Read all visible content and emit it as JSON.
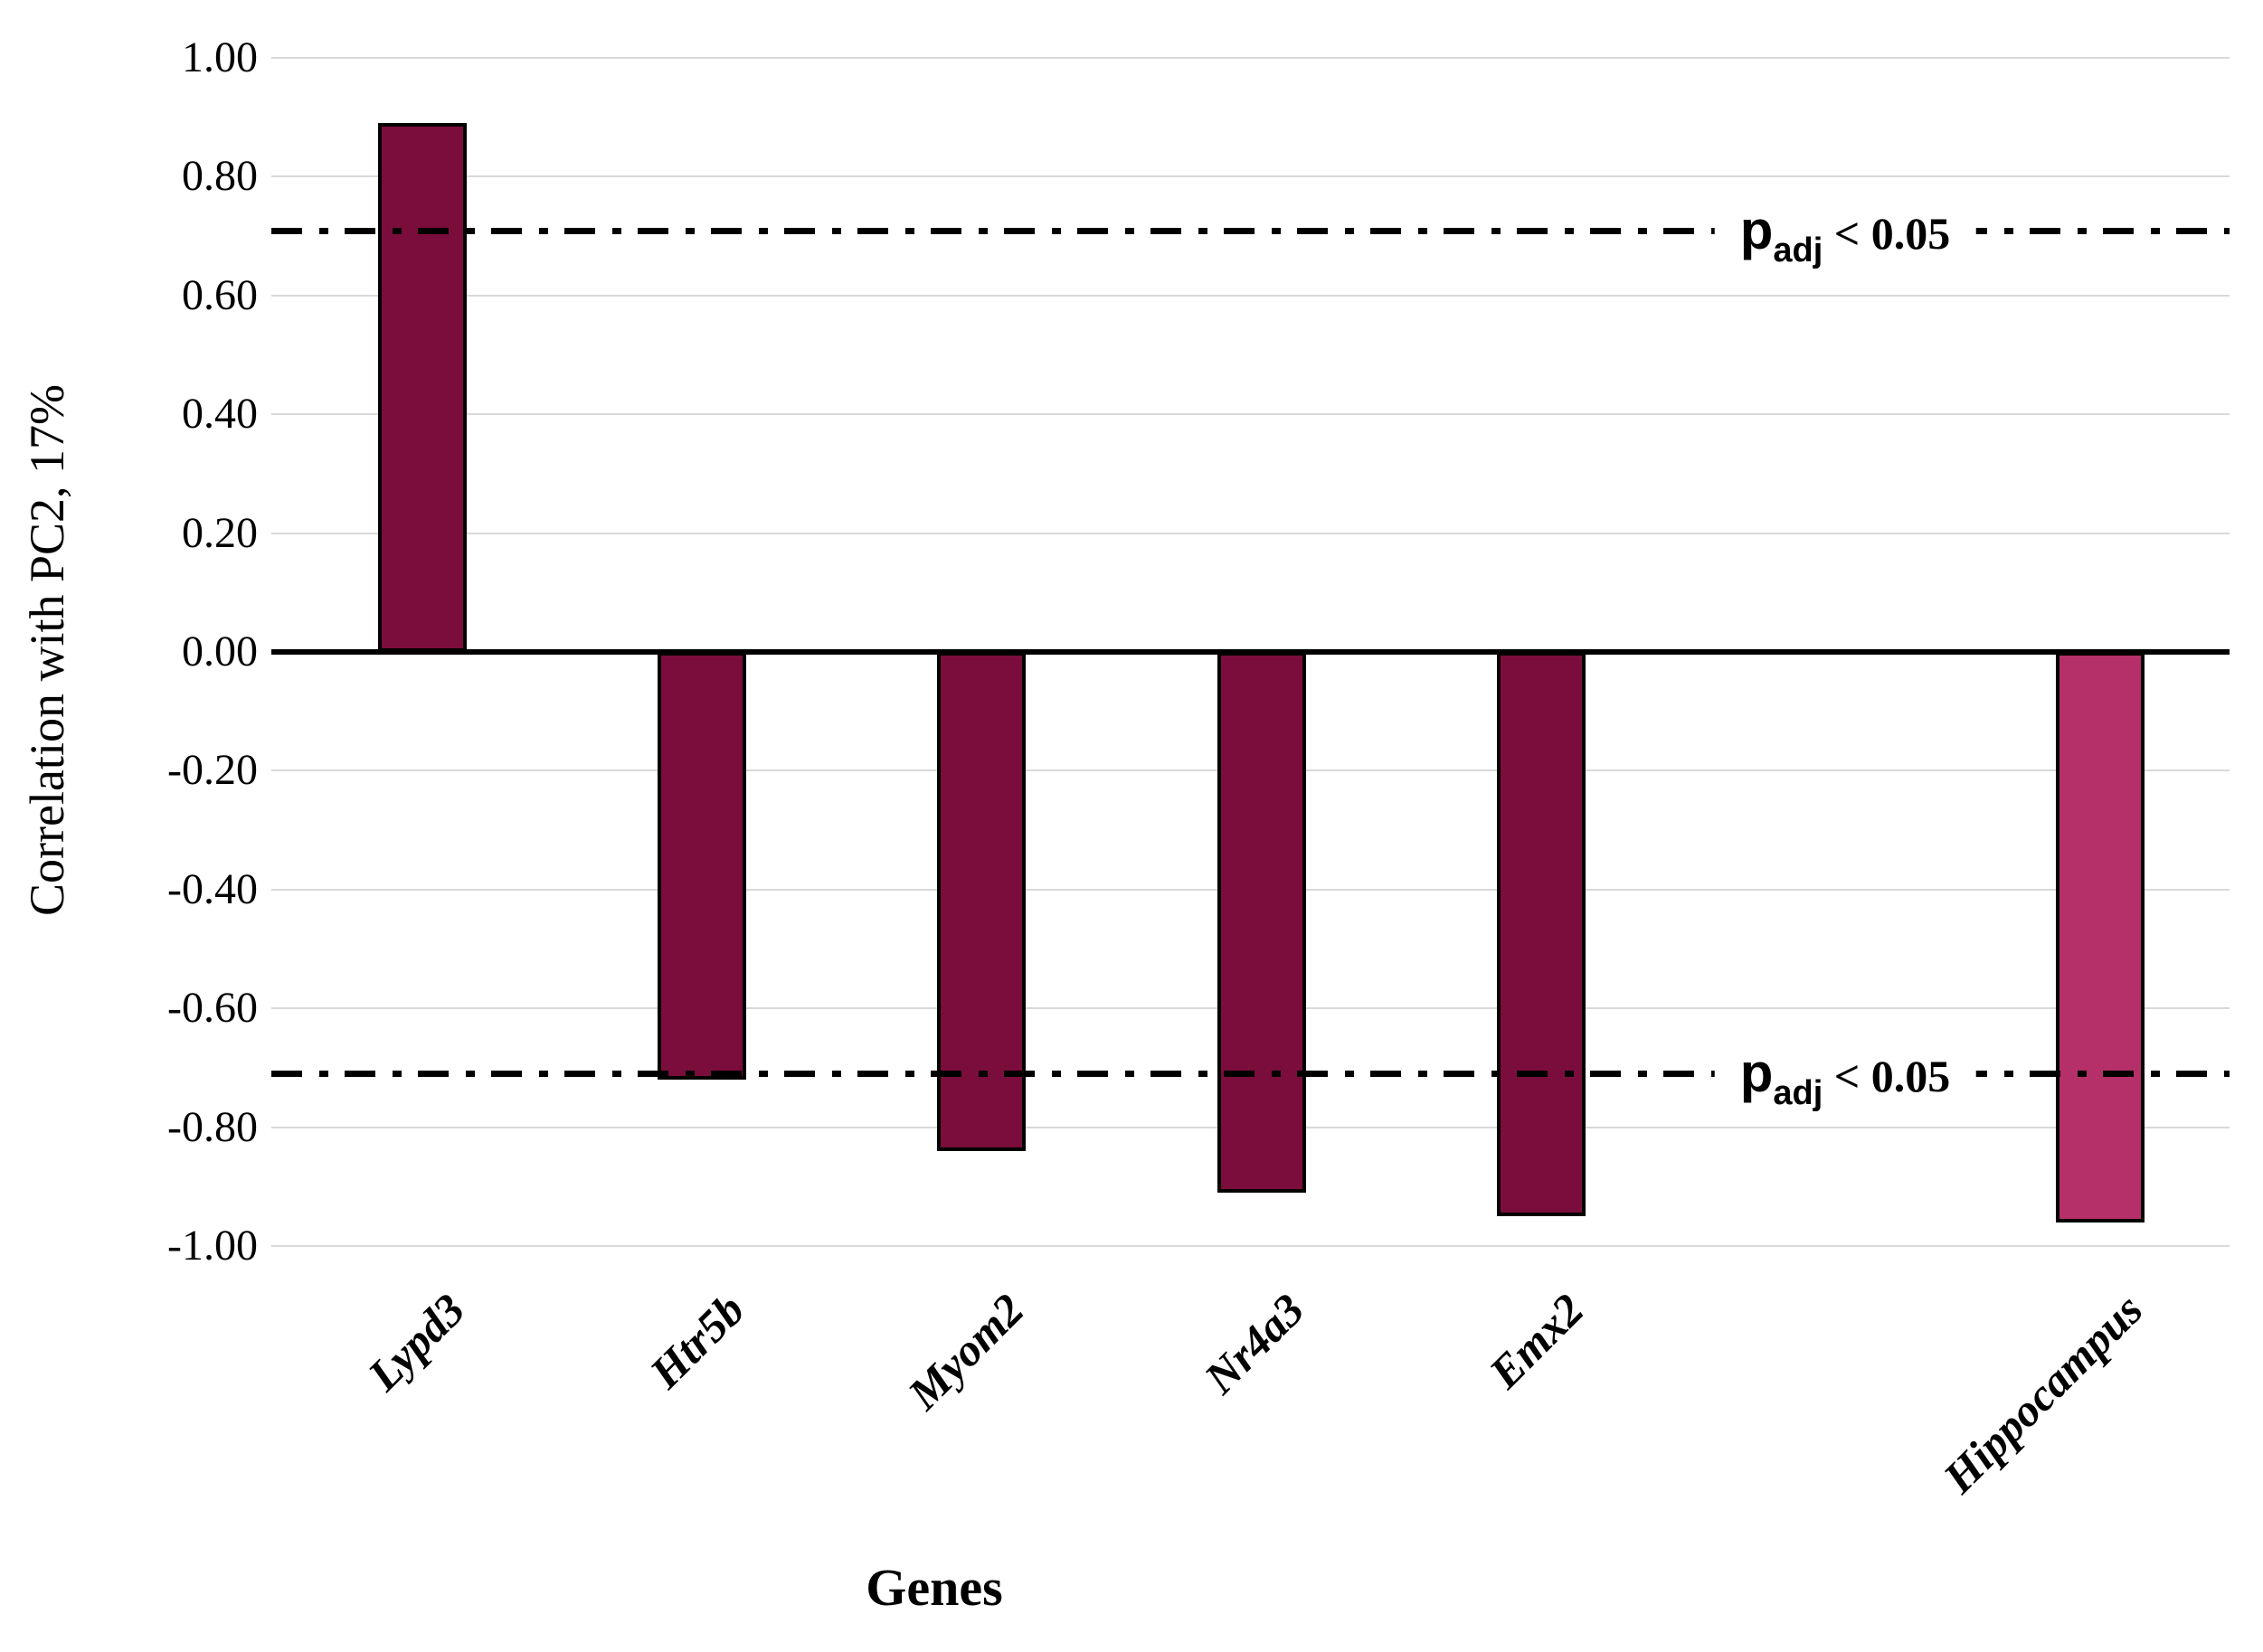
{
  "chart_data": {
    "type": "bar",
    "title": "",
    "xlabel": "Genes",
    "ylabel": "Correlation with PC2, 17%",
    "ylim": [
      -1.0,
      1.0
    ],
    "ytick_step": 0.2,
    "ytick_labels": [
      "1.00",
      "0.80",
      "0.60",
      "0.40",
      "0.20",
      "0.00",
      "-0.20",
      "-0.40",
      "-0.60",
      "-0.80",
      "-1.00"
    ],
    "grid": true,
    "legend_position": "none",
    "n_slots": 7,
    "bars": [
      {
        "category": "Lypd3",
        "value": 0.89,
        "slot": 0,
        "color": "#7B0D3C"
      },
      {
        "category": "Htr5b",
        "value": -0.72,
        "slot": 1,
        "color": "#7B0D3C"
      },
      {
        "category": "Myom2",
        "value": -0.84,
        "slot": 2,
        "color": "#7B0D3C"
      },
      {
        "category": "Nr4a3",
        "value": -0.91,
        "slot": 3,
        "color": "#7B0D3C"
      },
      {
        "category": "Emx2",
        "value": -0.95,
        "slot": 4,
        "color": "#7B0D3C"
      },
      {
        "category": "Hippocampus",
        "value": -0.96,
        "slot": 6,
        "color": "#B53069"
      }
    ],
    "threshold_lines": [
      {
        "value": 0.71,
        "label_p": "p",
        "label_sub": "adj",
        "label_rest": " < 0.05",
        "style": "dash-dot"
      },
      {
        "value": -0.71,
        "label_p": "p",
        "label_sub": "adj",
        "label_rest": " < 0.05",
        "style": "dash-dot"
      }
    ]
  },
  "colors": {
    "bar_dark": "#7B0D3C",
    "bar_light": "#B53069",
    "gridline": "#d9d9d9",
    "axis": "#000000",
    "background": "#ffffff"
  }
}
